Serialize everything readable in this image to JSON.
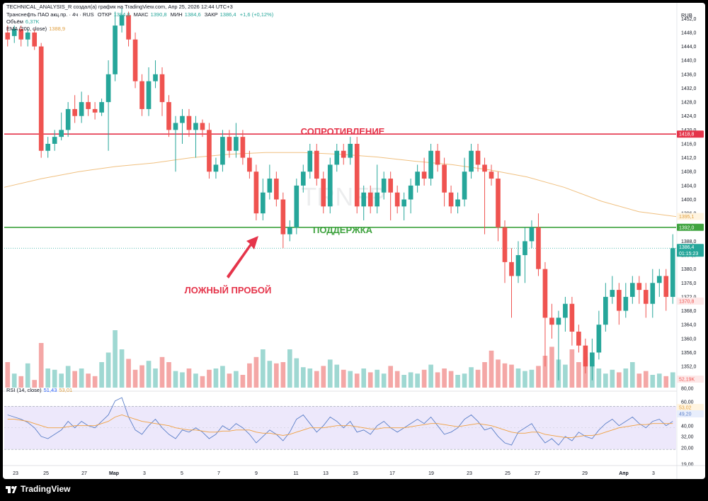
{
  "header": {
    "line1": "TECHNICAL_ANALYSIS_R создал(а) график на TradingView.com, Апр 25, 2026 12:44 UTC+3",
    "symbol": "Транснефть ПАО акц.пр. · 4ч · RUS",
    "ohlc_open_label": "ОТКР",
    "ohlc_open": "1384,8",
    "ohlc_high_label": "МАКС",
    "ohlc_high": "1390,8",
    "ohlc_low_label": "МИН",
    "ohlc_low": "1384,6",
    "ohlc_close_label": "ЗАКР",
    "ohlc_close": "1386,4",
    "change": "+1,6 (+0,12%)",
    "volume_label": "Объём",
    "volume_value": "6,37K",
    "ema_label": "EMA (200, close)",
    "ema_value": "1388,9",
    "rsi_label": "RSI (14, close)",
    "rsi_value1": "51,43",
    "rsi_value2": "53,01",
    "currency": "RUB"
  },
  "watermark": "TRNFP",
  "annotations": {
    "resistance": "СОПРОТИВЛЕНИЕ",
    "support": "ПОДДЕРЖКА",
    "false_breakout": "ЛОЖНЫЙ ПРОБОЙ"
  },
  "price_tags": {
    "resistance": "1418,8",
    "ema": "1395,1",
    "support": "1392,0",
    "last": "1386,4",
    "last_time": "01:15:23",
    "low_marker": "1370,8",
    "volume": "52,19K",
    "rsi1": "53,02",
    "rsi2": "49,20"
  },
  "footer": {
    "brand": "TradingView"
  },
  "colors": {
    "up": "#26a69a",
    "down": "#ef5350",
    "resistance": "#e5344a",
    "support": "#3fa33f",
    "ema": "#f0c080",
    "rsi_line": "#5b7fc8",
    "rsi_ma": "#f0a040",
    "rsi_band": "#ede8fb",
    "volume_up": "#9fd8d2",
    "volume_down": "#f4a7a6"
  },
  "chart_data": {
    "type": "candlestick",
    "price_axis": {
      "ticks": [
        "1452,0",
        "1448,0",
        "1444,0",
        "1440,0",
        "1436,0",
        "1432,0",
        "1428,0",
        "1424,0",
        "1420,0",
        "1416,0",
        "1412,0",
        "1408,0",
        "1404,0",
        "1400,0",
        "1396,0",
        "1392,0",
        "1388,0",
        "1384,0",
        "1380,0",
        "1376,0",
        "1372,0",
        "1368,0",
        "1364,0",
        "1360,0",
        "1356,0",
        "1352,0",
        "1348,0"
      ],
      "range": [
        1345.5,
        1454.5
      ]
    },
    "x_axis": {
      "ticks": [
        "23",
        "25",
        "27",
        "Мар",
        "3",
        "5",
        "7",
        "9",
        "11",
        "13",
        "15",
        "17",
        "19",
        "23",
        "25",
        "27",
        "29",
        "Апр",
        "3",
        "5"
      ]
    },
    "resistance_level": 1418.8,
    "support_level": 1392.0,
    "ema200": [
      1403.5,
      1406.0,
      1408.0,
      1409.5,
      1410.5,
      1412.0,
      1413.0,
      1413.5,
      1413.5,
      1413.0,
      1412.2,
      1411.0,
      1410.0,
      1408.5,
      1406.5,
      1403.5,
      1399.5,
      1396.5,
      1395.1
    ],
    "candles": [
      [
        1448,
        1446,
        1450,
        1444
      ],
      [
        1447,
        1449,
        1450,
        1445
      ],
      [
        1449,
        1446,
        1450,
        1444
      ],
      [
        1446,
        1448,
        1449,
        1444
      ],
      [
        1448,
        1444,
        1449,
        1443
      ],
      [
        1444,
        1414,
        1445,
        1412
      ],
      [
        1414,
        1416,
        1418,
        1412
      ],
      [
        1416,
        1418,
        1420,
        1414
      ],
      [
        1418,
        1420,
        1425,
        1417
      ],
      [
        1420,
        1426,
        1428,
        1418
      ],
      [
        1426,
        1424,
        1430,
        1422
      ],
      [
        1424,
        1428,
        1431,
        1422
      ],
      [
        1428,
        1426,
        1430,
        1424
      ],
      [
        1426,
        1425,
        1428,
        1423
      ],
      [
        1425,
        1428,
        1429,
        1424
      ],
      [
        1428,
        1436,
        1440,
        1414
      ],
      [
        1436,
        1450,
        1454,
        1434
      ],
      [
        1450,
        1453,
        1455,
        1448
      ],
      [
        1453,
        1446,
        1454,
        1444
      ],
      [
        1446,
        1434,
        1448,
        1432
      ],
      [
        1434,
        1426,
        1436,
        1424
      ],
      [
        1426,
        1434,
        1438,
        1424
      ],
      [
        1434,
        1436,
        1440,
        1432
      ],
      [
        1436,
        1428,
        1438,
        1424
      ],
      [
        1428,
        1420,
        1430,
        1418
      ],
      [
        1420,
        1422,
        1424,
        1408
      ],
      [
        1422,
        1424,
        1426,
        1416
      ],
      [
        1424,
        1420,
        1426,
        1418
      ],
      [
        1420,
        1422,
        1424,
        1412
      ],
      [
        1422,
        1420,
        1423,
        1418
      ],
      [
        1420,
        1408,
        1422,
        1406
      ],
      [
        1408,
        1410,
        1412,
        1406
      ],
      [
        1410,
        1418,
        1420,
        1408
      ],
      [
        1418,
        1414,
        1420,
        1412
      ],
      [
        1414,
        1418,
        1422,
        1412
      ],
      [
        1418,
        1412,
        1420,
        1410
      ],
      [
        1412,
        1408,
        1414,
        1406
      ],
      [
        1408,
        1396,
        1410,
        1394
      ],
      [
        1396,
        1402,
        1406,
        1394
      ],
      [
        1402,
        1406,
        1410,
        1400
      ],
      [
        1406,
        1400,
        1408,
        1398
      ],
      [
        1400,
        1390,
        1402,
        1386
      ],
      [
        1390,
        1392,
        1394,
        1388
      ],
      [
        1392,
        1404,
        1406,
        1390
      ],
      [
        1404,
        1408,
        1410,
        1402
      ],
      [
        1408,
        1414,
        1416,
        1406
      ],
      [
        1414,
        1406,
        1416,
        1404
      ],
      [
        1406,
        1398,
        1408,
        1396
      ],
      [
        1398,
        1410,
        1412,
        1396
      ],
      [
        1410,
        1414,
        1416,
        1408
      ],
      [
        1414,
        1412,
        1416,
        1410
      ],
      [
        1412,
        1416,
        1418,
        1410
      ],
      [
        1416,
        1398,
        1418,
        1396
      ],
      [
        1398,
        1402,
        1404,
        1394
      ],
      [
        1402,
        1398,
        1404,
        1396
      ],
      [
        1398,
        1402,
        1410,
        1396
      ],
      [
        1402,
        1406,
        1408,
        1400
      ],
      [
        1406,
        1402,
        1408,
        1394
      ],
      [
        1402,
        1398,
        1404,
        1396
      ],
      [
        1398,
        1400,
        1402,
        1394
      ],
      [
        1400,
        1404,
        1406,
        1396
      ],
      [
        1404,
        1408,
        1410,
        1402
      ],
      [
        1408,
        1406,
        1412,
        1404
      ],
      [
        1406,
        1414,
        1416,
        1404
      ],
      [
        1414,
        1410,
        1416,
        1408
      ],
      [
        1410,
        1402,
        1412,
        1398
      ],
      [
        1402,
        1398,
        1404,
        1396
      ],
      [
        1398,
        1400,
        1402,
        1396
      ],
      [
        1400,
        1408,
        1412,
        1398
      ],
      [
        1408,
        1414,
        1416,
        1406
      ],
      [
        1414,
        1410,
        1416,
        1408
      ],
      [
        1410,
        1408,
        1412,
        1390
      ],
      [
        1408,
        1406,
        1410,
        1404
      ],
      [
        1406,
        1392,
        1408,
        1388
      ],
      [
        1392,
        1382,
        1394,
        1376
      ],
      [
        1382,
        1378,
        1386,
        1366
      ],
      [
        1378,
        1384,
        1388,
        1376
      ],
      [
        1384,
        1388,
        1392,
        1376
      ],
      [
        1388,
        1392,
        1394,
        1386
      ],
      [
        1392,
        1380,
        1396,
        1378
      ],
      [
        1380,
        1366,
        1382,
        1352
      ],
      [
        1366,
        1364,
        1370,
        1360
      ],
      [
        1364,
        1366,
        1368,
        1348
      ],
      [
        1366,
        1370,
        1372,
        1362
      ],
      [
        1370,
        1362,
        1372,
        1358
      ],
      [
        1362,
        1358,
        1364,
        1356
      ],
      [
        1358,
        1352,
        1360,
        1350
      ],
      [
        1352,
        1356,
        1360,
        1348
      ],
      [
        1356,
        1364,
        1368,
        1354
      ],
      [
        1364,
        1372,
        1376,
        1362
      ],
      [
        1372,
        1374,
        1378,
        1370
      ],
      [
        1374,
        1368,
        1376,
        1364
      ],
      [
        1368,
        1372,
        1376,
        1366
      ],
      [
        1372,
        1376,
        1378,
        1370
      ],
      [
        1376,
        1374,
        1378,
        1370
      ],
      [
        1374,
        1370,
        1376,
        1366
      ],
      [
        1370,
        1376,
        1380,
        1366
      ],
      [
        1376,
        1378,
        1380,
        1372
      ],
      [
        1378,
        1372,
        1380,
        1368
      ],
      [
        1372,
        1386,
        1390,
        1370
      ]
    ],
    "volume": [
      40,
      22,
      18,
      38,
      12,
      70,
      30,
      28,
      22,
      34,
      26,
      30,
      22,
      18,
      40,
      55,
      90,
      60,
      45,
      28,
      35,
      42,
      30,
      48,
      40,
      26,
      24,
      30,
      22,
      18,
      28,
      30,
      34,
      22,
      26,
      20,
      38,
      48,
      60,
      42,
      38,
      40,
      60,
      46,
      32,
      30,
      26,
      34,
      44,
      36,
      28,
      26,
      22,
      30,
      24,
      28,
      22,
      34,
      26,
      20,
      24,
      22,
      28,
      36,
      24,
      30,
      26,
      20,
      22,
      32,
      28,
      40,
      58,
      44,
      38,
      36,
      30,
      26,
      28,
      34,
      50,
      64,
      44,
      36,
      60,
      40,
      48,
      34,
      30,
      22,
      28,
      24,
      30,
      40,
      22,
      26,
      20,
      22,
      18,
      24
    ],
    "volume_axis_label": "80,00",
    "rsi": [
      62,
      60,
      58,
      55,
      50,
      42,
      40,
      44,
      48,
      56,
      50,
      56,
      52,
      50,
      56,
      62,
      75,
      78,
      60,
      48,
      44,
      52,
      58,
      50,
      44,
      40,
      48,
      46,
      50,
      46,
      40,
      44,
      52,
      48,
      54,
      50,
      44,
      36,
      42,
      48,
      44,
      38,
      46,
      58,
      62,
      54,
      46,
      52,
      60,
      56,
      50,
      56,
      46,
      48,
      44,
      52,
      56,
      50,
      46,
      50,
      54,
      58,
      54,
      60,
      52,
      44,
      46,
      50,
      58,
      62,
      56,
      48,
      50,
      42,
      36,
      34,
      46,
      50,
      54,
      44,
      36,
      40,
      34,
      42,
      38,
      46,
      42,
      40,
      48,
      54,
      58,
      52,
      56,
      60,
      54,
      50,
      56,
      58,
      52,
      56
    ],
    "rsi_ma": [
      58,
      58,
      57,
      56,
      54,
      52,
      50,
      50,
      50,
      51,
      52,
      52,
      52,
      52,
      54,
      56,
      60,
      62,
      60,
      58,
      56,
      55,
      54,
      53,
      52,
      50,
      49,
      48,
      48,
      47,
      46,
      46,
      47,
      47,
      48,
      48,
      48,
      46,
      45,
      45,
      44,
      43,
      44,
      46,
      48,
      50,
      50,
      50,
      51,
      52,
      52,
      52,
      51,
      50,
      49,
      49,
      50,
      50,
      50,
      50,
      51,
      52,
      53,
      54,
      54,
      53,
      52,
      51,
      52,
      53,
      54,
      53,
      52,
      50,
      48,
      46,
      45,
      45,
      46,
      46,
      44,
      43,
      42,
      41,
      41,
      42,
      43,
      43,
      44,
      46,
      48,
      50,
      51,
      52,
      53,
      53,
      54,
      54,
      54,
      54
    ],
    "rsi_axis": {
      "ticks": [
        "80,00",
        "60,00",
        "40,00",
        "32,00",
        "20,00",
        "19,00"
      ],
      "range": [
        15,
        84
      ]
    }
  }
}
